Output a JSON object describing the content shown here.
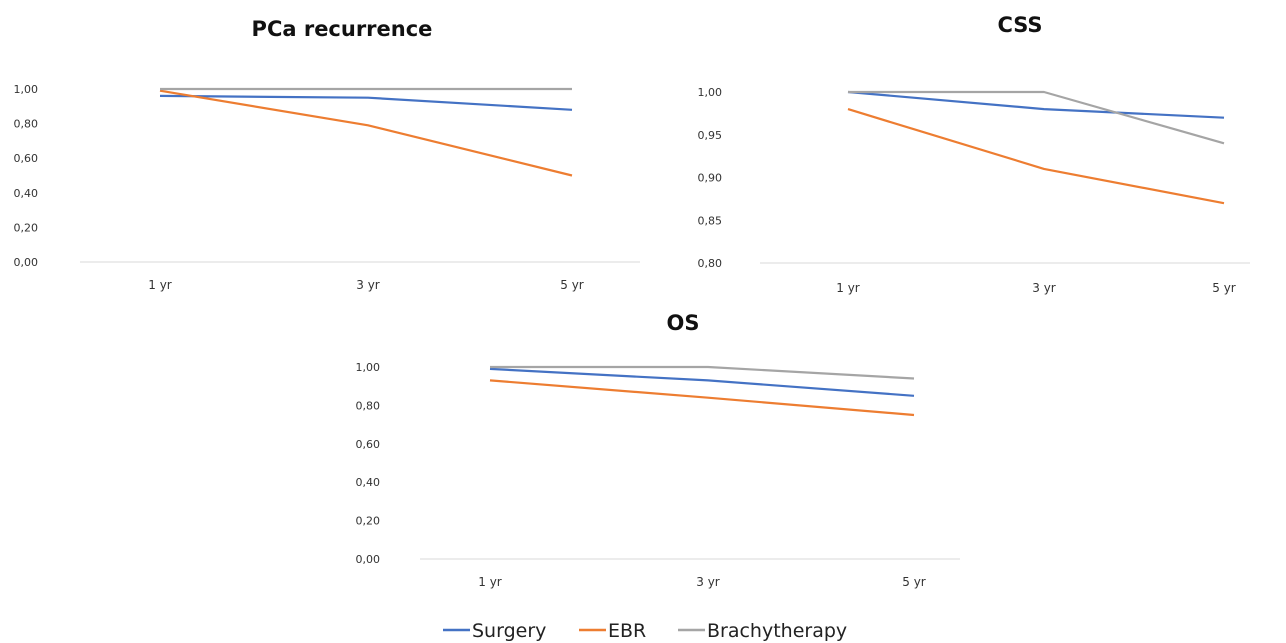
{
  "chart_data": [
    {
      "type": "line",
      "title": "PCa recurrence",
      "categories": [
        "1 yr",
        "3 yr",
        "5 yr"
      ],
      "yticks": [
        "0,00",
        "0,20",
        "0,40",
        "0,60",
        "0,80",
        "1,00"
      ],
      "ylim": [
        0,
        1
      ],
      "series": [
        {
          "name": "Surgery",
          "values": [
            0.96,
            0.95,
            0.88
          ]
        },
        {
          "name": "EBR",
          "values": [
            0.99,
            0.79,
            0.5
          ]
        },
        {
          "name": "Brachytherapy",
          "values": [
            1.0,
            1.0,
            1.0
          ]
        }
      ]
    },
    {
      "type": "line",
      "title": "CSS",
      "categories": [
        "1 yr",
        "3 yr",
        "5 yr"
      ],
      "yticks": [
        "0,80",
        "0,85",
        "0,90",
        "0,95",
        "1,00"
      ],
      "ylim": [
        0.8,
        1
      ],
      "series": [
        {
          "name": "Surgery",
          "values": [
            1.0,
            0.98,
            0.97
          ]
        },
        {
          "name": "EBR",
          "values": [
            0.98,
            0.91,
            0.87
          ]
        },
        {
          "name": "Brachytherapy",
          "values": [
            1.0,
            1.0,
            0.94
          ]
        }
      ]
    },
    {
      "type": "line",
      "title": "OS",
      "categories": [
        "1 yr",
        "3 yr",
        "5 yr"
      ],
      "yticks": [
        "0,00",
        "0,20",
        "0,40",
        "0,60",
        "0,80",
        "1,00"
      ],
      "ylim": [
        0,
        1
      ],
      "series": [
        {
          "name": "Surgery",
          "values": [
            0.99,
            0.93,
            0.85
          ]
        },
        {
          "name": "EBR",
          "values": [
            0.93,
            0.84,
            0.75
          ]
        },
        {
          "name": "Brachytherapy",
          "values": [
            1.0,
            1.0,
            0.94
          ]
        }
      ]
    }
  ],
  "legend": {
    "placement": "bottom",
    "items": [
      {
        "label": "Surgery",
        "color": "#4472c4"
      },
      {
        "label": "EBR",
        "color": "#ed7d31"
      },
      {
        "label": "Brachytherapy",
        "color": "#a5a5a5"
      }
    ]
  }
}
